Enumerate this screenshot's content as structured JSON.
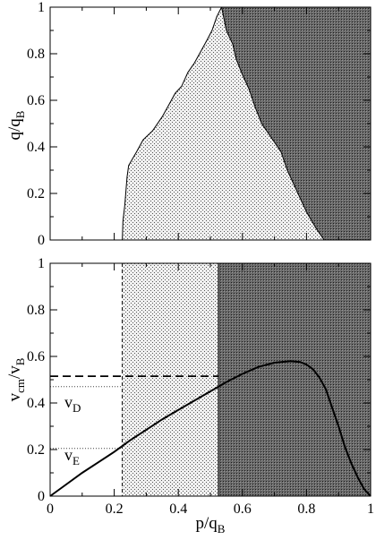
{
  "chart_data": [
    {
      "type": "area",
      "xlabel": "",
      "ylabel": "q/q_B",
      "ylabel_main": "q/q",
      "ylabel_sub": "B",
      "xlim": [
        0,
        1
      ],
      "ylim": [
        0,
        1
      ],
      "xticks": [
        "",
        "",
        "",
        "",
        "",
        ""
      ],
      "yticks": [
        "0",
        "0.2",
        "0.4",
        "0.6",
        "0.8",
        "1"
      ],
      "regions": [
        {
          "fill": "light-dotted",
          "points": [
            [
              0.225,
              0
            ],
            [
              0.227,
              0.08
            ],
            [
              0.233,
              0.15
            ],
            [
              0.24,
              0.27
            ],
            [
              0.245,
              0.32
            ],
            [
              0.27,
              0.38
            ],
            [
              0.29,
              0.43
            ],
            [
              0.32,
              0.47
            ],
            [
              0.35,
              0.53
            ],
            [
              0.37,
              0.58
            ],
            [
              0.39,
              0.63
            ],
            [
              0.41,
              0.66
            ],
            [
              0.43,
              0.72
            ],
            [
              0.45,
              0.76
            ],
            [
              0.47,
              0.81
            ],
            [
              0.49,
              0.86
            ],
            [
              0.505,
              0.9
            ],
            [
              0.52,
              0.96
            ],
            [
              0.535,
              1.0
            ]
          ]
        },
        {
          "fill": "dark-hatched",
          "points": [
            [
              0.535,
              1.0
            ],
            [
              0.55,
              0.9
            ],
            [
              0.57,
              0.84
            ],
            [
              0.58,
              0.78
            ],
            [
              0.6,
              0.71
            ],
            [
              0.62,
              0.65
            ],
            [
              0.64,
              0.57
            ],
            [
              0.66,
              0.5
            ],
            [
              0.69,
              0.44
            ],
            [
              0.72,
              0.38
            ],
            [
              0.74,
              0.3
            ],
            [
              0.77,
              0.21
            ],
            [
              0.8,
              0.12
            ],
            [
              0.83,
              0.05
            ],
            [
              0.855,
              0
            ]
          ]
        }
      ]
    },
    {
      "type": "line",
      "xlabel": "p/q_B",
      "ylabel": "v_cm/v_B",
      "xlabel_main": "p/q",
      "xlabel_sub": "B",
      "ylabel_v": "v",
      "ylabel_sub1": "cm",
      "ylabel_mid": "/v",
      "ylabel_sub2": "B",
      "xlim": [
        0,
        1
      ],
      "ylim": [
        0,
        1
      ],
      "xticks": [
        "0",
        "0.2",
        "0.4",
        "0.6",
        "0.8",
        "1"
      ],
      "yticks": [
        "0",
        "0.2",
        "0.4",
        "0.6",
        "0.8",
        "1"
      ],
      "bands": [
        {
          "fill": "light-dotted",
          "x": [
            0.225,
            0.525
          ]
        },
        {
          "fill": "dark-hatched",
          "x": [
            0.525,
            1.0
          ]
        }
      ],
      "series": [
        {
          "values": [
            [
              0,
              0
            ],
            [
              0.05,
              0.05
            ],
            [
              0.1,
              0.1
            ],
            [
              0.15,
              0.145
            ],
            [
              0.2,
              0.19
            ],
            [
              0.25,
              0.24
            ],
            [
              0.3,
              0.285
            ],
            [
              0.35,
              0.33
            ],
            [
              0.4,
              0.37
            ],
            [
              0.45,
              0.41
            ],
            [
              0.5,
              0.45
            ],
            [
              0.55,
              0.49
            ],
            [
              0.6,
              0.525
            ],
            [
              0.65,
              0.555
            ],
            [
              0.7,
              0.573
            ],
            [
              0.75,
              0.58
            ],
            [
              0.78,
              0.576
            ],
            [
              0.8,
              0.565
            ],
            [
              0.82,
              0.545
            ],
            [
              0.84,
              0.51
            ],
            [
              0.86,
              0.46
            ],
            [
              0.88,
              0.38
            ],
            [
              0.9,
              0.3
            ],
            [
              0.92,
              0.21
            ],
            [
              0.94,
              0.14
            ],
            [
              0.96,
              0.08
            ],
            [
              0.98,
              0.03
            ],
            [
              1.0,
              0.0
            ]
          ]
        }
      ],
      "reference_lines": [
        {
          "style": "dashed",
          "y": 0.515,
          "x_end": 0.525
        },
        {
          "style": "dotted",
          "y": 0.47,
          "x_end": 0.225,
          "label_main": "v",
          "label_sub": "D"
        },
        {
          "style": "dotted",
          "y": 0.205,
          "x_end": 0.225,
          "label_main": "v",
          "label_sub": "E"
        }
      ]
    }
  ]
}
